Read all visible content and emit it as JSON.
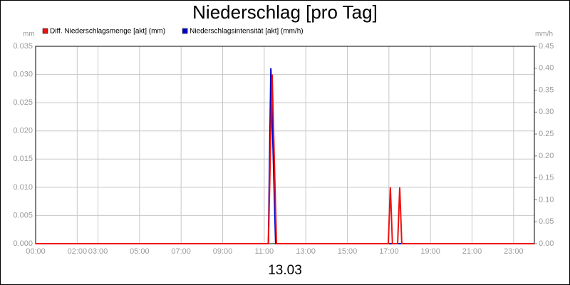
{
  "chart_data": {
    "type": "line",
    "title": "Niederschlag [pro Tag]",
    "ylabel": "mm",
    "y2label": "mm/h",
    "xlabel": "13.03",
    "xlim": [
      0,
      24
    ],
    "xticks": [
      {
        "value": 0,
        "label": "00:00"
      },
      {
        "value": 2,
        "label": "02:00"
      },
      {
        "value": 3,
        "label": "03:00"
      },
      {
        "value": 5,
        "label": "05:00"
      },
      {
        "value": 7,
        "label": "07:00"
      },
      {
        "value": 9,
        "label": "09:00"
      },
      {
        "value": 11,
        "label": "11:00"
      },
      {
        "value": 13,
        "label": "13:00"
      },
      {
        "value": 15,
        "label": "15:00"
      },
      {
        "value": 17,
        "label": "17:00"
      },
      {
        "value": 19,
        "label": "19:00"
      },
      {
        "value": 21,
        "label": "21:00"
      },
      {
        "value": 23,
        "label": "23:00"
      }
    ],
    "ylim": [
      0,
      0.035
    ],
    "yticks": [
      {
        "value": 0,
        "label": "0.000"
      },
      {
        "value": 0.005,
        "label": "0.005"
      },
      {
        "value": 0.01,
        "label": "0.010"
      },
      {
        "value": 0.015,
        "label": "0.015"
      },
      {
        "value": 0.02,
        "label": "0.020"
      },
      {
        "value": 0.025,
        "label": "0.025"
      },
      {
        "value": 0.03,
        "label": "0.030"
      },
      {
        "value": 0.035,
        "label": "0.035"
      }
    ],
    "y2lim": [
      0,
      0.45
    ],
    "y2ticks": [
      {
        "value": 0,
        "label": "0.00"
      },
      {
        "value": 0.05,
        "label": "0.05"
      },
      {
        "value": 0.1,
        "label": "0.10"
      },
      {
        "value": 0.15,
        "label": "0.15"
      },
      {
        "value": 0.2,
        "label": "0.20"
      },
      {
        "value": 0.25,
        "label": "0.25"
      },
      {
        "value": 0.3,
        "label": "0.30"
      },
      {
        "value": 0.35,
        "label": "0.35"
      },
      {
        "value": 0.4,
        "label": "0.40"
      },
      {
        "value": 0.45,
        "label": "0.45"
      }
    ],
    "grid": true,
    "series": [
      {
        "name": "Diff. Niederschlagsmenge [akt] (mm)",
        "color": "#ee1111",
        "axis": "y",
        "x": [
          0,
          11.2,
          11.38,
          11.59,
          16.97,
          17.07,
          17.17,
          17.42,
          17.52,
          17.62,
          24
        ],
        "values": [
          0,
          0,
          0.03,
          0,
          0,
          0.01,
          0,
          0,
          0.01,
          0,
          0
        ]
      },
      {
        "name": "Niederschlagsintensität [akt] (mm/h)",
        "color": "#0000cc",
        "axis": "y2",
        "x": [
          0,
          11.2,
          11.32,
          11.55,
          24
        ],
        "values": [
          0,
          0,
          0.4,
          0,
          0
        ]
      }
    ]
  }
}
